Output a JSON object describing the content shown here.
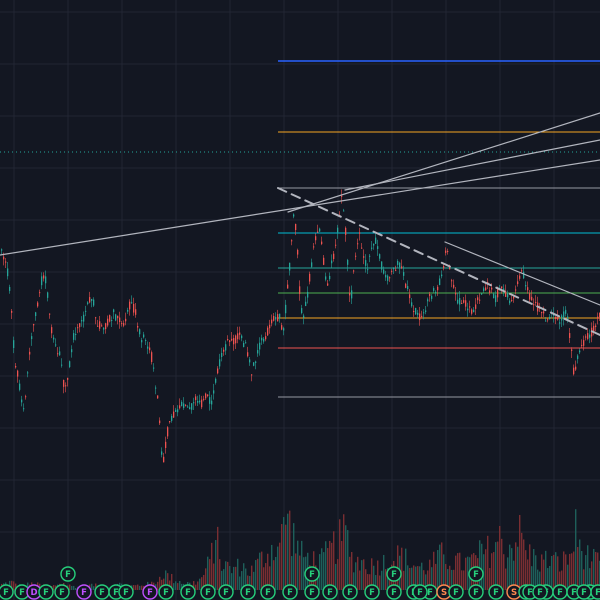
{
  "theme": {
    "background": "#131722",
    "grid": "#222633",
    "up": "#26a69a",
    "down": "#ef5350",
    "volume_up": "#1e5f5a",
    "volume_down": "#7a2e32",
    "drawing": "#b2b5be"
  },
  "chart_data": {
    "type": "candlestick",
    "title": "",
    "xlabel": "",
    "ylabel": "",
    "grid": true,
    "price_path": [
      [
        0,
        251
      ],
      [
        6,
        262
      ],
      [
        10,
        300
      ],
      [
        14,
        360
      ],
      [
        18,
        380
      ],
      [
        22,
        410
      ],
      [
        25,
        398
      ],
      [
        29,
        352
      ],
      [
        34,
        318
      ],
      [
        38,
        298
      ],
      [
        42,
        275
      ],
      [
        46,
        282
      ],
      [
        50,
        328
      ],
      [
        55,
        345
      ],
      [
        60,
        358
      ],
      [
        64,
        390
      ],
      [
        68,
        372
      ],
      [
        72,
        342
      ],
      [
        76,
        325
      ],
      [
        82,
        322
      ],
      [
        87,
        303
      ],
      [
        92,
        300
      ],
      [
        97,
        322
      ],
      [
        102,
        330
      ],
      [
        108,
        320
      ],
      [
        113,
        313
      ],
      [
        118,
        320
      ],
      [
        124,
        322
      ],
      [
        130,
        302
      ],
      [
        135,
        313
      ],
      [
        140,
        337
      ],
      [
        146,
        342
      ],
      [
        150,
        350
      ],
      [
        155,
        385
      ],
      [
        158,
        405
      ],
      [
        160,
        445
      ],
      [
        163,
        460
      ],
      [
        167,
        432
      ],
      [
        171,
        418
      ],
      [
        176,
        408
      ],
      [
        182,
        404
      ],
      [
        188,
        412
      ],
      [
        194,
        400
      ],
      [
        200,
        404
      ],
      [
        206,
        396
      ],
      [
        211,
        402
      ],
      [
        215,
        382
      ],
      [
        219,
        362
      ],
      [
        224,
        350
      ],
      [
        228,
        340
      ],
      [
        233,
        342
      ],
      [
        237,
        335
      ],
      [
        242,
        340
      ],
      [
        247,
        352
      ],
      [
        251,
        372
      ],
      [
        255,
        358
      ],
      [
        260,
        342
      ],
      [
        265,
        337
      ],
      [
        270,
        323
      ],
      [
        274,
        320
      ],
      [
        279,
        318
      ],
      [
        282,
        335
      ],
      [
        286,
        300
      ],
      [
        290,
        255
      ],
      [
        293,
        215
      ],
      [
        296,
        232
      ],
      [
        299,
        290
      ],
      [
        302,
        320
      ],
      [
        306,
        302
      ],
      [
        310,
        270
      ],
      [
        314,
        240
      ],
      [
        318,
        225
      ],
      [
        322,
        250
      ],
      [
        326,
        290
      ],
      [
        330,
        270
      ],
      [
        334,
        250
      ],
      [
        338,
        225
      ],
      [
        341,
        195
      ],
      [
        344,
        215
      ],
      [
        347,
        262
      ],
      [
        350,
        305
      ],
      [
        354,
        262
      ],
      [
        358,
        232
      ],
      [
        362,
        250
      ],
      [
        366,
        270
      ],
      [
        370,
        255
      ],
      [
        374,
        238
      ],
      [
        378,
        255
      ],
      [
        383,
        272
      ],
      [
        388,
        278
      ],
      [
        393,
        272
      ],
      [
        398,
        262
      ],
      [
        402,
        272
      ],
      [
        406,
        287
      ],
      [
        410,
        300
      ],
      [
        414,
        310
      ],
      [
        418,
        318
      ],
      [
        422,
        312
      ],
      [
        426,
        306
      ],
      [
        430,
        296
      ],
      [
        434,
        290
      ],
      [
        438,
        284
      ],
      [
        442,
        272
      ],
      [
        446,
        250
      ],
      [
        450,
        272
      ],
      [
        454,
        290
      ],
      [
        458,
        302
      ],
      [
        462,
        300
      ],
      [
        466,
        306
      ],
      [
        470,
        312
      ],
      [
        474,
        306
      ],
      [
        478,
        300
      ],
      [
        482,
        292
      ],
      [
        486,
        286
      ],
      [
        490,
        290
      ],
      [
        494,
        300
      ],
      [
        498,
        292
      ],
      [
        502,
        286
      ],
      [
        506,
        296
      ],
      [
        510,
        300
      ],
      [
        514,
        292
      ],
      [
        518,
        282
      ],
      [
        522,
        272
      ],
      [
        526,
        290
      ],
      [
        530,
        298
      ],
      [
        534,
        304
      ],
      [
        538,
        308
      ],
      [
        542,
        314
      ],
      [
        546,
        318
      ],
      [
        550,
        314
      ],
      [
        554,
        318
      ],
      [
        558,
        322
      ],
      [
        562,
        316
      ],
      [
        566,
        312
      ],
      [
        570,
        340
      ],
      [
        573,
        372
      ],
      [
        576,
        362
      ],
      [
        580,
        352
      ],
      [
        584,
        342
      ],
      [
        588,
        336
      ],
      [
        592,
        330
      ],
      [
        596,
        322
      ],
      [
        600,
        312
      ]
    ],
    "volume_profile": [
      [
        0,
        5
      ],
      [
        10,
        8
      ],
      [
        20,
        4
      ],
      [
        30,
        6
      ],
      [
        40,
        5
      ],
      [
        50,
        3
      ],
      [
        60,
        7
      ],
      [
        70,
        4
      ],
      [
        80,
        3
      ],
      [
        90,
        5
      ],
      [
        100,
        4
      ],
      [
        110,
        3
      ],
      [
        120,
        6
      ],
      [
        130,
        4
      ],
      [
        140,
        5
      ],
      [
        150,
        6
      ],
      [
        158,
        10
      ],
      [
        162,
        18
      ],
      [
        170,
        12
      ],
      [
        180,
        8
      ],
      [
        190,
        6
      ],
      [
        200,
        10
      ],
      [
        210,
        30
      ],
      [
        215,
        55
      ],
      [
        220,
        28
      ],
      [
        230,
        20
      ],
      [
        240,
        24
      ],
      [
        250,
        18
      ],
      [
        260,
        30
      ],
      [
        270,
        40
      ],
      [
        280,
        45
      ],
      [
        285,
        78
      ],
      [
        290,
        60
      ],
      [
        295,
        48
      ],
      [
        300,
        35
      ],
      [
        310,
        30
      ],
      [
        320,
        28
      ],
      [
        330,
        40
      ],
      [
        340,
        50
      ],
      [
        345,
        58
      ],
      [
        350,
        32
      ],
      [
        360,
        28
      ],
      [
        370,
        24
      ],
      [
        380,
        26
      ],
      [
        390,
        30
      ],
      [
        400,
        34
      ],
      [
        410,
        26
      ],
      [
        420,
        22
      ],
      [
        430,
        24
      ],
      [
        440,
        34
      ],
      [
        450,
        30
      ],
      [
        460,
        26
      ],
      [
        470,
        28
      ],
      [
        480,
        36
      ],
      [
        490,
        40
      ],
      [
        500,
        50
      ],
      [
        505,
        35
      ],
      [
        510,
        44
      ],
      [
        520,
        56
      ],
      [
        525,
        38
      ],
      [
        530,
        34
      ],
      [
        540,
        28
      ],
      [
        550,
        30
      ],
      [
        560,
        26
      ],
      [
        570,
        34
      ],
      [
        575,
        58
      ],
      [
        580,
        40
      ],
      [
        590,
        30
      ],
      [
        600,
        25
      ]
    ],
    "event_markers": [
      {
        "label": "F",
        "color": "#26d07c"
      },
      {
        "label": "F",
        "color": "#26d07c"
      },
      {
        "label": "D",
        "color": "#c050ff"
      },
      {
        "label": "F",
        "color": "#26d07c"
      },
      {
        "label": "F",
        "color": "#26d07c"
      },
      {
        "label": "F",
        "color": "#26d07c"
      },
      {
        "label": "F",
        "color": "#c050ff"
      },
      {
        "label": "F",
        "color": "#26d07c"
      },
      {
        "label": "F",
        "color": "#26d07c"
      },
      {
        "label": "F",
        "color": "#26d07c"
      },
      {
        "label": "F",
        "color": "#c050ff"
      },
      {
        "label": "F",
        "color": "#26d07c"
      },
      {
        "label": "F",
        "color": "#26d07c"
      },
      {
        "label": "F",
        "color": "#26d07c"
      },
      {
        "label": "F",
        "color": "#26d07c"
      },
      {
        "label": "F",
        "color": "#26d07c"
      },
      {
        "label": "F",
        "color": "#26d07c"
      },
      {
        "label": "F",
        "color": "#26d07c"
      },
      {
        "label": "F",
        "color": "#26d07c"
      },
      {
        "label": "F",
        "color": "#26d07c"
      },
      {
        "label": "F",
        "color": "#26d07c"
      },
      {
        "label": "F",
        "color": "#26d07c"
      },
      {
        "label": "F",
        "color": "#26d07c"
      },
      {
        "label": "F",
        "color": "#26d07c"
      },
      {
        "label": "F",
        "color": "#26d07c"
      },
      {
        "label": "F",
        "color": "#26d07c"
      },
      {
        "label": "F",
        "color": "#26d07c"
      },
      {
        "label": "S",
        "color": "#ff8a50"
      },
      {
        "label": "F",
        "color": "#26d07c"
      },
      {
        "label": "F",
        "color": "#26d07c"
      },
      {
        "label": "F",
        "color": "#26d07c"
      },
      {
        "label": "F",
        "color": "#26d07c"
      },
      {
        "label": "S",
        "color": "#ff8a50"
      },
      {
        "label": "F",
        "color": "#26d07c"
      },
      {
        "label": "F",
        "color": "#26d07c"
      },
      {
        "label": "F",
        "color": "#26d07c"
      },
      {
        "label": "F",
        "color": "#26d07c"
      },
      {
        "label": "F",
        "color": "#26d07c"
      },
      {
        "label": "F",
        "color": "#26d07c"
      },
      {
        "label": "F",
        "color": "#26d07c"
      },
      {
        "label": "F",
        "color": "#26d07c"
      },
      {
        "label": "F",
        "color": "#26d07c"
      },
      {
        "label": "F",
        "color": "#26d07c"
      }
    ],
    "horizontal_levels": [
      {
        "name": "level-blue",
        "color": "#2962ff"
      },
      {
        "name": "level-orange-top",
        "color": "#f5a623"
      },
      {
        "name": "level-teal-dotted",
        "color": "#26a69a"
      },
      {
        "name": "level-gray-upper",
        "color": "#9598a1"
      },
      {
        "name": "level-cyan",
        "color": "#00bcd4"
      },
      {
        "name": "level-teal",
        "color": "#26a69a"
      },
      {
        "name": "level-green",
        "color": "#4caf50"
      },
      {
        "name": "level-orange-mid",
        "color": "#f5a623"
      },
      {
        "name": "level-red",
        "color": "#ef5350"
      },
      {
        "name": "level-gray-lower",
        "color": "#9598a1"
      }
    ],
    "trendlines": [
      {
        "name": "trendline-long-1",
        "style": "solid"
      },
      {
        "name": "trendline-long-2",
        "style": "solid"
      },
      {
        "name": "trendline-long-3",
        "style": "solid"
      },
      {
        "name": "trendline-dashed",
        "style": "dashed"
      },
      {
        "name": "trendline-solid-down",
        "style": "solid"
      }
    ]
  }
}
